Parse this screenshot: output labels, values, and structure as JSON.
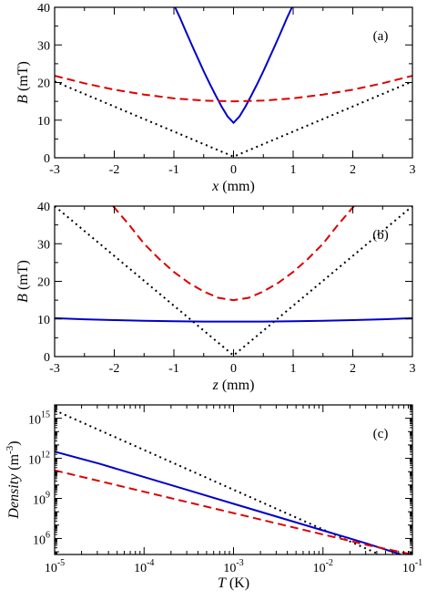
{
  "chart_data": [
    {
      "type": "line",
      "panel_label": "(a)",
      "xlabel_var": "x",
      "xlabel_unit": " (mm)",
      "ylabel_var": "B",
      "ylabel_unit": " (mT)",
      "xlim": [
        -3,
        3
      ],
      "ylim": [
        0,
        40
      ],
      "xticks": [
        -3,
        -2,
        -1,
        0,
        1,
        2,
        3
      ],
      "yticks": [
        0,
        10,
        20,
        30,
        40
      ],
      "series": [
        {
          "color": "#0000cc",
          "dash": "solid",
          "x": [
            -0.98,
            -0.9,
            -0.8,
            -0.7,
            -0.6,
            -0.5,
            -0.4,
            -0.3,
            -0.2,
            -0.1,
            0,
            0.1,
            0.2,
            0.3,
            0.4,
            0.5,
            0.6,
            0.7,
            0.8,
            0.9,
            0.98
          ],
          "y": [
            40,
            37.3,
            33.6,
            30.0,
            26.5,
            23.0,
            19.7,
            16.6,
            13.6,
            11.0,
            9.3,
            11.0,
            13.6,
            16.6,
            19.7,
            23.0,
            26.5,
            30.0,
            33.6,
            37.3,
            40
          ]
        },
        {
          "color": "#dd0000",
          "dash": "dashed",
          "x": [
            -3,
            -2.5,
            -2,
            -1.5,
            -1,
            -0.5,
            0,
            0.5,
            1,
            1.5,
            2,
            2.5,
            3
          ],
          "y": [
            21.8,
            19.8,
            18.1,
            16.8,
            15.8,
            15.2,
            15.0,
            15.2,
            15.8,
            16.8,
            18.1,
            19.8,
            21.8
          ]
        },
        {
          "color": "#000000",
          "dash": "dotted",
          "x": [
            -3,
            0,
            3
          ],
          "y": [
            20.3,
            0.3,
            20.3
          ]
        }
      ]
    },
    {
      "type": "line",
      "panel_label": "(b)",
      "xlabel_var": "z",
      "xlabel_unit": " (mm)",
      "ylabel_var": "B",
      "ylabel_unit": " (mT)",
      "xlim": [
        -3,
        3
      ],
      "ylim": [
        0,
        40
      ],
      "xticks": [
        -3,
        -2,
        -1,
        0,
        1,
        2,
        3
      ],
      "yticks": [
        0,
        10,
        20,
        30,
        40
      ],
      "series": [
        {
          "color": "#0000cc",
          "dash": "solid",
          "x": [
            -3,
            -2.5,
            -2,
            -1.5,
            -1,
            -0.5,
            0,
            0.5,
            1,
            1.5,
            2,
            2.5,
            3
          ],
          "y": [
            10.2,
            9.9,
            9.7,
            9.5,
            9.4,
            9.3,
            9.3,
            9.3,
            9.4,
            9.5,
            9.7,
            9.9,
            10.2
          ]
        },
        {
          "color": "#dd0000",
          "dash": "dashed",
          "x": [
            -2.02,
            -1.75,
            -1.5,
            -1.25,
            -1,
            -0.75,
            -0.5,
            -0.25,
            0,
            0.25,
            0.5,
            0.75,
            1,
            1.25,
            1.5,
            1.75,
            2.02
          ],
          "y": [
            40,
            35.0,
            30.0,
            26.0,
            22.5,
            19.6,
            17.3,
            15.6,
            15.0,
            15.6,
            17.3,
            19.6,
            22.5,
            26.0,
            30.0,
            35.0,
            40
          ]
        },
        {
          "color": "#000000",
          "dash": "dotted",
          "x": [
            -3,
            0,
            3
          ],
          "y": [
            40,
            0.3,
            40
          ]
        }
      ]
    },
    {
      "type": "line",
      "panel_label": "(c)",
      "xlabel_var": "T",
      "xlabel_unit": " (K)",
      "ylabel_var": "Density",
      "ylabel_unit": " (m",
      "ylabel_sup": "-3",
      "ylabel_close": ")",
      "xscale": "log",
      "yscale": "log",
      "xlim_log10": [
        -5,
        -1
      ],
      "ylim_log10": [
        4.8,
        16
      ],
      "xticks_log10": [
        -5,
        -4,
        -3,
        -2,
        -1
      ],
      "yticks_log10": [
        6,
        9,
        12,
        15
      ],
      "tick_base": "10",
      "series": [
        {
          "color": "#000000",
          "dash": "dotted",
          "x_log10": [
            -5,
            -1.37
          ],
          "y_log10": [
            15.6,
            4.8
          ]
        },
        {
          "color": "#0000cc",
          "dash": "solid",
          "x_log10": [
            -5,
            -4.5,
            -4,
            -3.5,
            -3,
            -2.5,
            -2,
            -1.5,
            -1.13
          ],
          "y_log10": [
            12.5,
            11.6,
            10.6,
            9.6,
            8.6,
            7.6,
            6.6,
            5.6,
            4.8
          ]
        },
        {
          "color": "#dd0000",
          "dash": "dashed",
          "x_log10": [
            -5,
            -4.5,
            -4,
            -3.5,
            -3,
            -2.5,
            -2,
            -1.5,
            -1
          ],
          "y_log10": [
            11.1,
            10.3,
            9.5,
            8.7,
            7.9,
            7.1,
            6.3,
            5.5,
            4.8
          ]
        }
      ]
    }
  ]
}
